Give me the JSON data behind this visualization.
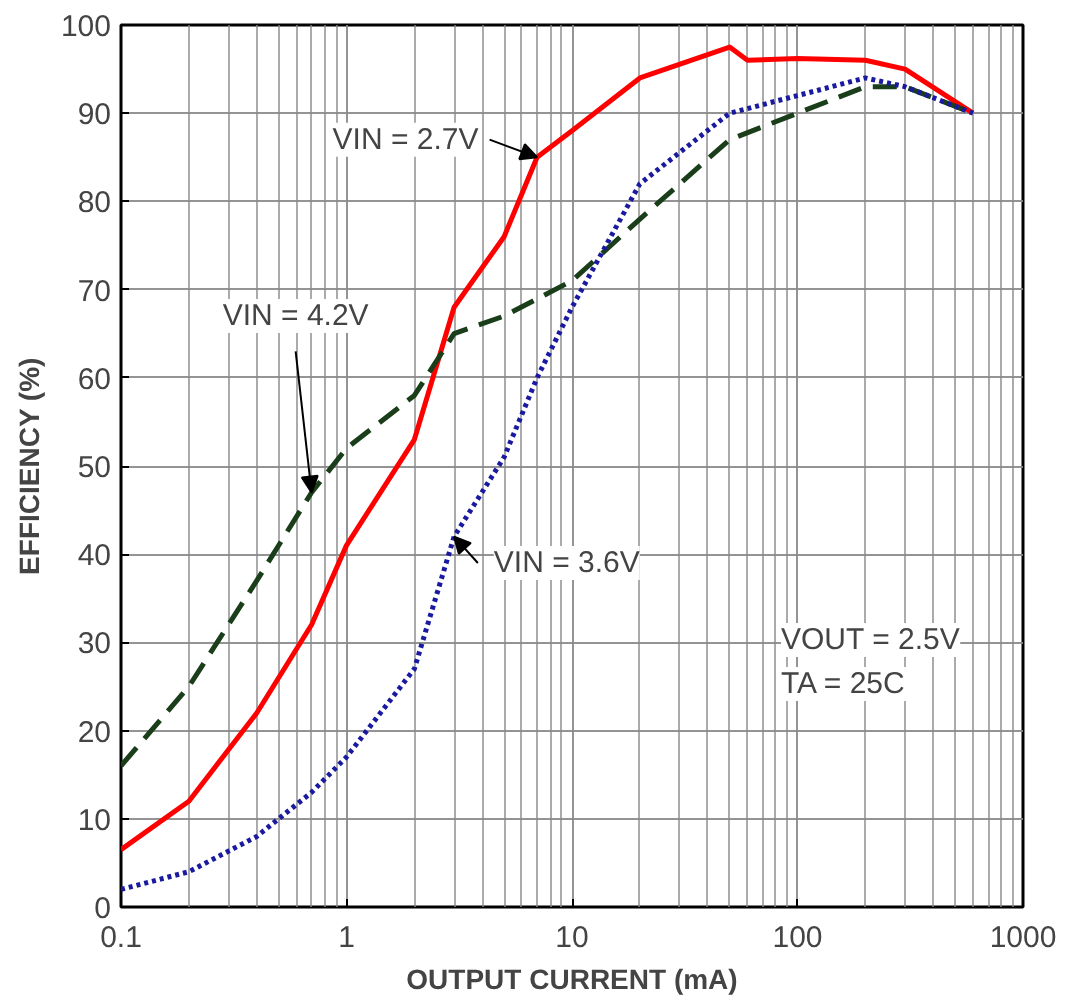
{
  "chart_data": {
    "type": "line",
    "xlabel": "OUTPUT CURRENT (mA)",
    "ylabel": "EFFICIENCY (%)",
    "log": "x",
    "xlim": [
      0.1,
      1000
    ],
    "xticks": [
      0.1,
      1,
      10,
      100,
      1000
    ],
    "ylim": [
      0,
      100
    ],
    "yticks": [
      0,
      10,
      20,
      30,
      40,
      50,
      60,
      70,
      80,
      90,
      100
    ],
    "grid": true,
    "series": [
      {
        "name": "VIN = 2.7V",
        "color": "#ff0000",
        "line_style": "solid",
        "x": [
          0.1,
          0.2,
          0.4,
          0.7,
          1,
          2,
          3,
          5,
          7,
          10,
          20,
          50,
          60,
          100,
          200,
          300,
          600
        ],
        "values": [
          6.5,
          12,
          22,
          32,
          41,
          53,
          68,
          76,
          85,
          88,
          94,
          97.5,
          96,
          96.2,
          96,
          95,
          90
        ]
      },
      {
        "name": "VIN = 4.2V",
        "color": "#1a3d1a",
        "line_style": "dashed",
        "x": [
          0.1,
          0.2,
          0.4,
          0.7,
          1,
          2,
          3,
          5,
          10,
          20,
          50,
          100,
          200,
          300,
          600
        ],
        "values": [
          16,
          25,
          37,
          47,
          52,
          58,
          65,
          67,
          71,
          78,
          87,
          90,
          93,
          93,
          90
        ]
      },
      {
        "name": "VIN = 3.6V",
        "color": "#1a1aa0",
        "line_style": "dotted",
        "x": [
          0.1,
          0.2,
          0.4,
          0.7,
          1,
          2,
          3,
          5,
          7,
          10,
          20,
          50,
          100,
          200,
          300,
          600
        ],
        "values": [
          2,
          4,
          8,
          13,
          17,
          27,
          42,
          51,
          60,
          68,
          82,
          90,
          92,
          94,
          93,
          90
        ]
      }
    ],
    "annotations": [
      "VOUT = 2.5V",
      "TA = 25C"
    ]
  }
}
